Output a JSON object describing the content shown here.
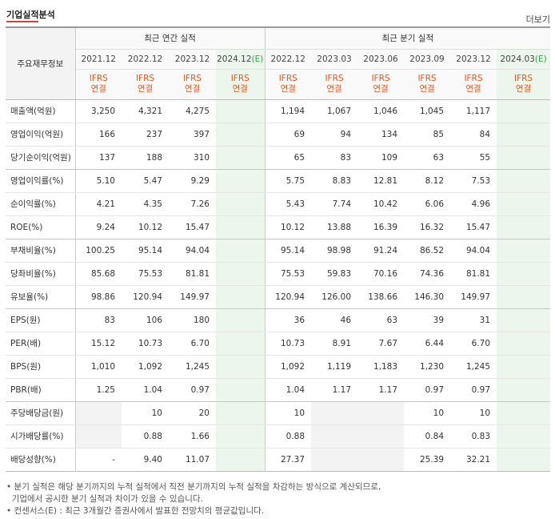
{
  "header": {
    "title": "기업실적분석",
    "more_label": "더보기"
  },
  "table": {
    "corner_label": "주요재무정보",
    "group_annual": "최근 연간 실적",
    "group_quarter": "최근 분기 실적",
    "annual_periods": [
      "2021.12",
      "2022.12",
      "2023.12",
      "2024.12"
    ],
    "annual_estimate_mark": "(E)",
    "quarter_periods": [
      "2022.12",
      "2023.03",
      "2023.06",
      "2023.09",
      "2023.12",
      "2024.03"
    ],
    "quarter_estimate_mark": "(E)",
    "ifrs_top": "IFRS",
    "ifrs_bottom": "연결",
    "rows": [
      {
        "label": "매출액(억원)",
        "annual": [
          "3,250",
          "4,321",
          "4,275",
          ""
        ],
        "quarter": [
          "1,194",
          "1,067",
          "1,046",
          "1,045",
          "1,117",
          ""
        ]
      },
      {
        "label": "영업이익(억원)",
        "annual": [
          "166",
          "237",
          "397",
          ""
        ],
        "quarter": [
          "69",
          "94",
          "134",
          "85",
          "84",
          ""
        ]
      },
      {
        "label": "당기순이익(억원)",
        "annual": [
          "137",
          "188",
          "310",
          ""
        ],
        "quarter": [
          "65",
          "83",
          "109",
          "63",
          "55",
          ""
        ]
      },
      {
        "label": "영업이익률(%)",
        "annual": [
          "5.10",
          "5.47",
          "9.29",
          ""
        ],
        "quarter": [
          "5.75",
          "8.83",
          "12.81",
          "8.12",
          "7.53",
          ""
        ]
      },
      {
        "label": "순이익률(%)",
        "annual": [
          "4.21",
          "4.35",
          "7.26",
          ""
        ],
        "quarter": [
          "5.43",
          "7.74",
          "10.42",
          "6.06",
          "4.96",
          ""
        ]
      },
      {
        "label": "ROE(%)",
        "annual": [
          "9.24",
          "10.12",
          "15.47",
          ""
        ],
        "quarter": [
          "10.12",
          "13.88",
          "16.39",
          "16.32",
          "15.47",
          ""
        ]
      },
      {
        "label": "부채비율(%)",
        "annual": [
          "100.25",
          "95.14",
          "94.04",
          ""
        ],
        "quarter": [
          "95.14",
          "98.98",
          "91.24",
          "86.52",
          "94.04",
          ""
        ]
      },
      {
        "label": "당좌비율(%)",
        "annual": [
          "85.68",
          "75.53",
          "81.81",
          ""
        ],
        "quarter": [
          "75.53",
          "59.83",
          "70.16",
          "74.36",
          "81.81",
          ""
        ]
      },
      {
        "label": "유보율(%)",
        "annual": [
          "98.86",
          "120.94",
          "149.97",
          ""
        ],
        "quarter": [
          "120.94",
          "126.00",
          "138.66",
          "146.30",
          "149.97",
          ""
        ]
      },
      {
        "label": "EPS(원)",
        "annual": [
          "83",
          "106",
          "180",
          ""
        ],
        "quarter": [
          "36",
          "46",
          "63",
          "39",
          "31",
          ""
        ]
      },
      {
        "label": "PER(배)",
        "annual": [
          "15.12",
          "10.73",
          "6.70",
          ""
        ],
        "quarter": [
          "10.73",
          "8.91",
          "7.67",
          "6.44",
          "6.70",
          ""
        ]
      },
      {
        "label": "BPS(원)",
        "annual": [
          "1,010",
          "1,092",
          "1,245",
          ""
        ],
        "quarter": [
          "1,092",
          "1,119",
          "1,183",
          "1,230",
          "1,245",
          ""
        ]
      },
      {
        "label": "PBR(배)",
        "annual": [
          "1.25",
          "1.04",
          "0.97",
          ""
        ],
        "quarter": [
          "1.04",
          "1.17",
          "1.17",
          "0.97",
          "0.97",
          ""
        ]
      },
      {
        "label": "주당배당금(원)",
        "annual": [
          "",
          "10",
          "20",
          ""
        ],
        "quarter": [
          "10",
          "",
          "",
          "10",
          "10",
          ""
        ]
      },
      {
        "label": "시가배당률(%)",
        "annual": [
          "",
          "0.88",
          "1.66",
          ""
        ],
        "quarter": [
          "0.88",
          "",
          "",
          "0.84",
          "0.83",
          ""
        ]
      },
      {
        "label": "배당성향(%)",
        "annual": [
          "-",
          "9.40",
          "11.07",
          ""
        ],
        "quarter": [
          "27.37",
          "",
          "",
          "25.39",
          "32.21",
          ""
        ]
      }
    ],
    "empty_annual": [
      [
        13,
        0
      ],
      [
        14,
        0
      ]
    ],
    "empty_quarter": [
      [
        13,
        1
      ],
      [
        13,
        2
      ],
      [
        14,
        1
      ],
      [
        14,
        2
      ],
      [
        15,
        1
      ],
      [
        15,
        2
      ]
    ]
  },
  "notes": [
    "• 분기 실적은 해당 분기까지의 누적 실적에서 직전 분기까지의 누적 실적을 차감하는 방식으로 계산되므로,",
    "  기업에서 공시한 분기 실적과 차이가 있을 수 있습니다.",
    "• 컨센서스(E) : 최근 3개월간 증권사에서 발표한 전망치의 평균값입니다."
  ]
}
